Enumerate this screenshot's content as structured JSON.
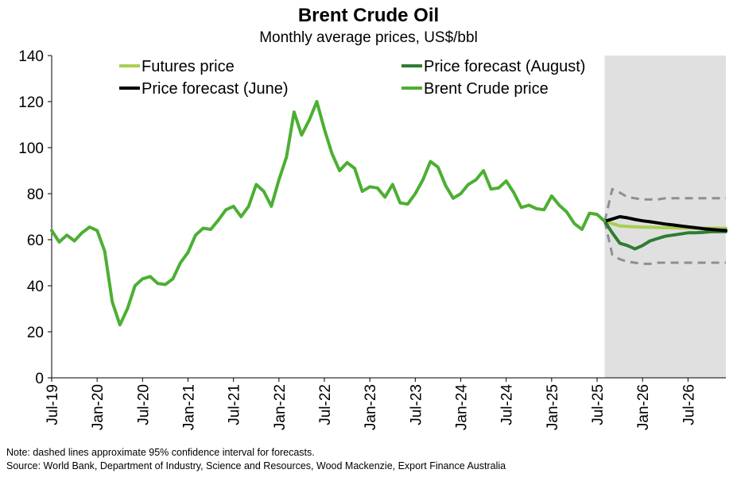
{
  "chart_data": {
    "type": "line",
    "title": "Brent Crude Oil",
    "subtitle": "Monthly average prices, US$/bbl",
    "ylim": [
      0,
      140
    ],
    "yticks": [
      0,
      20,
      40,
      60,
      80,
      100,
      120,
      140
    ],
    "x_range": [
      "2019-07",
      "2026-12"
    ],
    "xtick_labels": [
      "Jul-19",
      "Jan-20",
      "Jul-20",
      "Jan-21",
      "Jul-21",
      "Jan-22",
      "Jul-22",
      "Jan-23",
      "Jul-23",
      "Jan-24",
      "Jul-24",
      "Jan-25",
      "Jul-25",
      "Jan-26",
      "Jul-26"
    ],
    "forecast_shading": {
      "from": "2025-08",
      "to": "2026-12",
      "color": "#e0e0e0"
    },
    "legend_placement": "top",
    "series": [
      {
        "name": "Futures price",
        "color": "#a9cf54",
        "start": "2025-08",
        "values": [
          68,
          67,
          66,
          65.8,
          65.6,
          65.5,
          65.4,
          65.3,
          65.2,
          65.2,
          65.1,
          65.1,
          65,
          65,
          65,
          65,
          65
        ]
      },
      {
        "name": "Price forecast (August)",
        "color": "#2e7d32",
        "start": "2025-08",
        "values": [
          68,
          63,
          58.5,
          57.5,
          56,
          57.5,
          59.5,
          60.5,
          61.5,
          62,
          62.5,
          63,
          63,
          63.2,
          63.5,
          63.5,
          63.5
        ]
      },
      {
        "name": "Price forecast (June)",
        "color": "#000000",
        "start": "2025-08",
        "values": [
          68,
          69,
          70,
          69.5,
          68.8,
          68.2,
          67.8,
          67.3,
          66.8,
          66.4,
          66,
          65.6,
          65.2,
          64.8,
          64.5,
          64.2,
          64
        ]
      },
      {
        "name": "Brent Crude price",
        "color": "#4caf33",
        "start": "2019-07",
        "values": [
          64,
          59,
          62,
          59.5,
          63,
          65.5,
          64,
          55,
          33,
          23,
          30,
          40,
          43,
          44,
          41,
          40.5,
          43,
          50,
          54.5,
          62,
          65,
          64.5,
          68.5,
          73,
          74.5,
          70,
          74.5,
          84,
          81,
          74.5,
          86,
          96,
          115.5,
          105.5,
          112,
          120,
          108,
          97.5,
          90,
          93.5,
          91,
          81,
          83,
          82.5,
          78.5,
          84,
          76,
          75.5,
          80,
          86,
          94,
          91.5,
          83.5,
          78,
          80,
          84,
          86,
          90,
          82,
          82.5,
          85.5,
          80.5,
          74,
          75,
          73.5,
          73,
          79,
          75,
          72,
          67,
          64.5,
          71.5,
          71,
          68
        ]
      },
      {
        "name": "95% CI upper",
        "dashed": true,
        "color": "#8a8f96",
        "start": "2025-08",
        "values": [
          68,
          82,
          80.5,
          78.5,
          78,
          77.5,
          77.5,
          77.5,
          78,
          78,
          78,
          78,
          78,
          78,
          78,
          78,
          78
        ]
      },
      {
        "name": "95% CI lower",
        "dashed": true,
        "color": "#8a8f96",
        "start": "2025-08",
        "values": [
          68,
          53.5,
          51.5,
          50.5,
          50,
          49.5,
          49.5,
          50,
          50,
          50,
          50,
          50,
          50,
          50,
          50,
          50,
          50
        ]
      }
    ],
    "legend": [
      {
        "label": "Futures price",
        "color": "#a9cf54"
      },
      {
        "label": "Price forecast (August)",
        "color": "#2e7d32"
      },
      {
        "label": "Price forecast (June)",
        "color": "#000000"
      },
      {
        "label": "Brent Crude price",
        "color": "#4caf33"
      }
    ]
  },
  "notes": {
    "note": "Note: dashed lines approximate 95% confidence interval for forecasts.",
    "source": "Source: World Bank, Department of Industry, Science and Resources, Wood Mackenzie, Export Finance Australia"
  }
}
